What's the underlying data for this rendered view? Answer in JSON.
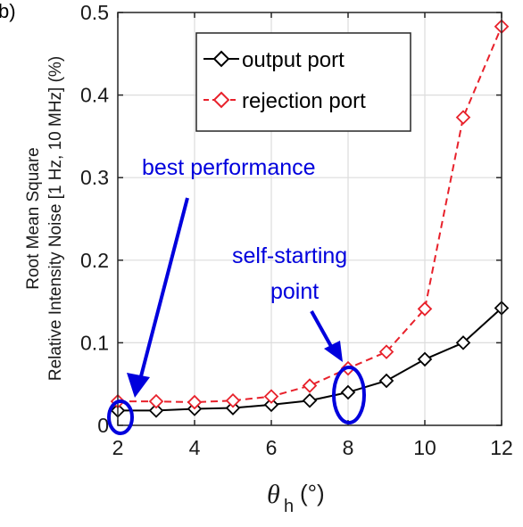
{
  "panel_label": "b)",
  "chart_data": {
    "type": "line",
    "xlabel": "θ",
    "xlabel_sub": "h",
    "xlabel_unit": "(°)",
    "ylabel_lines": [
      "Root Mean Square",
      "Relative Intensity Noise [1 Hz, 10 MHz] (%)"
    ],
    "xlim": [
      2,
      12
    ],
    "ylim": [
      0,
      0.5
    ],
    "xticks": [
      2,
      4,
      6,
      8,
      10,
      12
    ],
    "yticks": [
      0,
      0.1,
      0.2,
      0.3,
      0.4,
      0.5
    ],
    "ytick_labels": [
      "0",
      "0.1",
      "0.2",
      "0.3",
      "0.4",
      "0.5"
    ],
    "grid": true,
    "legend_position": "top-center",
    "x": [
      2,
      3,
      4,
      5,
      6,
      7,
      8,
      9,
      10,
      11,
      12
    ],
    "series": [
      {
        "name": "output port",
        "color": "#000000",
        "line_style": "solid",
        "marker": "diamond",
        "values": [
          0.018,
          0.018,
          0.02,
          0.021,
          0.025,
          0.03,
          0.04,
          0.054,
          0.08,
          0.1,
          0.142
        ]
      },
      {
        "name": "rejection port",
        "color": "#e8212b",
        "line_style": "dashed",
        "marker": "diamond",
        "values": [
          0.029,
          0.029,
          0.028,
          0.03,
          0.035,
          0.048,
          0.069,
          0.089,
          0.141,
          0.373,
          0.483
        ]
      }
    ],
    "annotations": [
      {
        "text": "best performance",
        "color": "#0000dd",
        "x": 2,
        "y": 0.025
      },
      {
        "text_lines": [
          "self-starting",
          "point"
        ],
        "color": "#0000dd",
        "x": 8,
        "y": 0.055
      }
    ]
  }
}
